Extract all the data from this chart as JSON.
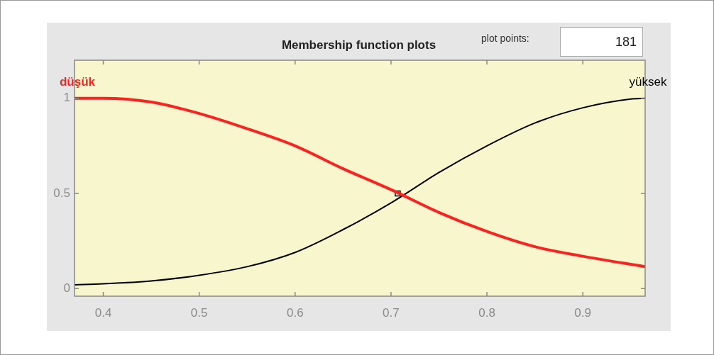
{
  "chart_data": {
    "type": "line",
    "title": "Membership function plots",
    "annotations": [
      "plot points:",
      "181"
    ],
    "xlim": [
      0.37,
      0.965
    ],
    "ylim": [
      -0.04,
      1.2
    ],
    "xticks": [
      0.4,
      0.5,
      0.6,
      0.7,
      0.8,
      0.9
    ],
    "yticks": [
      0,
      0.5,
      1
    ],
    "legend": false,
    "marker": "none",
    "series": [
      {
        "name": "düşük",
        "color": "#ff2020",
        "x": [
          0.37,
          0.4,
          0.45,
          0.5,
          0.55,
          0.6,
          0.65,
          0.7,
          0.75,
          0.8,
          0.85,
          0.9,
          0.965
        ],
        "values": [
          1.0,
          1.0,
          0.98,
          0.92,
          0.84,
          0.75,
          0.63,
          0.52,
          0.4,
          0.3,
          0.22,
          0.17,
          0.115
        ]
      },
      {
        "name": "yüksek",
        "color": "#000000",
        "x": [
          0.37,
          0.4,
          0.45,
          0.5,
          0.55,
          0.6,
          0.65,
          0.7,
          0.75,
          0.8,
          0.85,
          0.9,
          0.95,
          0.965
        ],
        "values": [
          0.02,
          0.025,
          0.04,
          0.07,
          0.115,
          0.19,
          0.31,
          0.45,
          0.61,
          0.75,
          0.87,
          0.95,
          0.996,
          1.0
        ]
      },
      {
        "type": "scatter",
        "color": "#000000",
        "marker": "square",
        "x": [
          0.707
        ],
        "values": [
          0.5
        ]
      }
    ]
  }
}
